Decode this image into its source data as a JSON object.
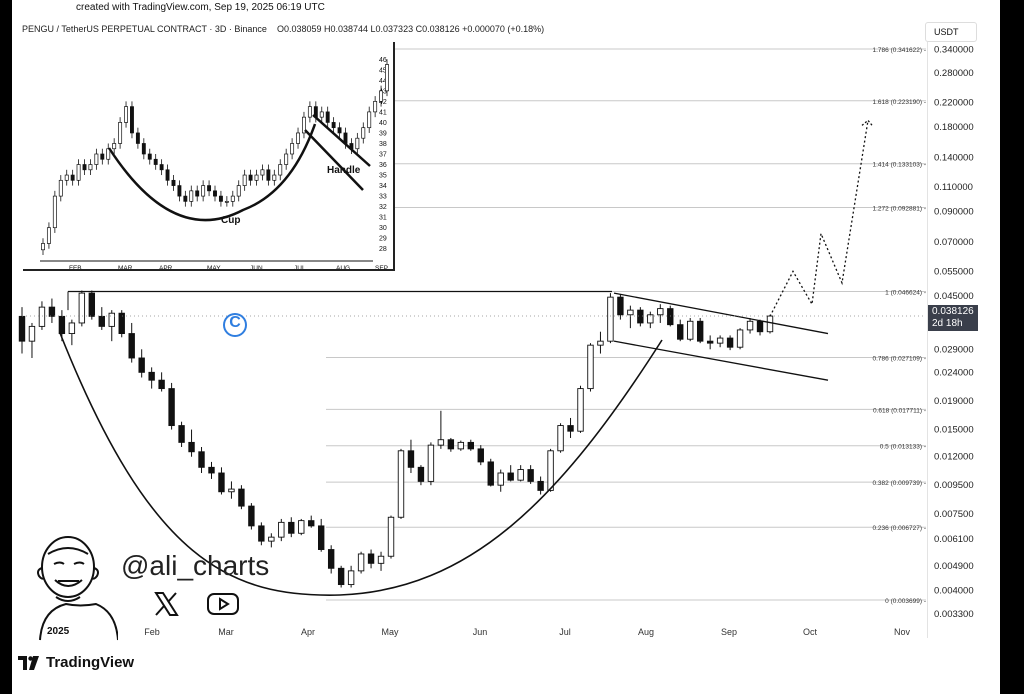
{
  "header": {
    "created": "created with TradingView.com, Sep 19, 2025 06:19 UTC",
    "symbol": "PENGU / TetherUS PERPETUAL CONTRACT · 3D · Binance",
    "ohlc": "O0.038059 H0.038744 L0.037323 C0.038126 +0.000070 (+0.18%)",
    "currency": "USDT"
  },
  "price_badge": {
    "price": "0.038126",
    "countdown": "2d 18h"
  },
  "branding": {
    "handle": "@ali_charts",
    "year": "2025",
    "logo": "TradingView",
    "icons": [
      "x-icon",
      "youtube-icon",
      "avatar-icon",
      "tradingview-logo-icon",
      "coin-logo-icon"
    ]
  },
  "colors": {
    "candle_up": "#ffffff",
    "candle_down": "#111111",
    "lines": "#111111",
    "fib": "#cccccc"
  },
  "chart_data": [
    {
      "type": "candlestick",
      "title": "",
      "x_ticks": [
        "Feb",
        "Mar",
        "Apr",
        "May",
        "Jun",
        "Jul",
        "Aug",
        "Sep",
        "Oct",
        "Nov"
      ],
      "y_scale": "log",
      "ylim": [
        0.003,
        0.37
      ],
      "y_ticks": [
        "0.340000",
        "0.280000",
        "0.220000",
        "0.180000",
        "0.140000",
        "0.110000",
        "0.090000",
        "0.070000",
        "0.055000",
        "0.045000",
        "0.029000",
        "0.024000",
        "0.019000",
        "0.015000",
        "0.012000",
        "0.009500",
        "0.007500",
        "0.006100",
        "0.004900",
        "0.004000",
        "0.003300"
      ],
      "fib_levels": [
        {
          "label": "1.786 (0.341622)",
          "value": 0.341622
        },
        {
          "label": "1.618 (0.223190)",
          "value": 0.22319
        },
        {
          "label": "1.414 (0.133103)",
          "value": 0.133103
        },
        {
          "label": "1.272 (0.092881)",
          "value": 0.092881
        },
        {
          "label": "1 (0.046624)",
          "value": 0.046624
        },
        {
          "label": "0.786 (0.027109)",
          "value": 0.027109
        },
        {
          "label": "0.618 (0.017711)",
          "value": 0.017711
        },
        {
          "label": "0.5 (0.013133)",
          "value": 0.013133
        },
        {
          "label": "0.382 (0.009739)",
          "value": 0.009739
        },
        {
          "label": "0.236 (0.006727)",
          "value": 0.006727
        },
        {
          "label": "0 (0.003699)",
          "value": 0.003699
        }
      ],
      "ohlc": [
        [
          0.038,
          0.041,
          0.028,
          0.031
        ],
        [
          0.031,
          0.036,
          0.027,
          0.035
        ],
        [
          0.035,
          0.043,
          0.034,
          0.041
        ],
        [
          0.041,
          0.044,
          0.036,
          0.038
        ],
        [
          0.038,
          0.04,
          0.031,
          0.033
        ],
        [
          0.033,
          0.037,
          0.03,
          0.036
        ],
        [
          0.036,
          0.047,
          0.035,
          0.046
        ],
        [
          0.046,
          0.047,
          0.037,
          0.038
        ],
        [
          0.038,
          0.041,
          0.034,
          0.035
        ],
        [
          0.035,
          0.04,
          0.031,
          0.039
        ],
        [
          0.039,
          0.04,
          0.032,
          0.033
        ],
        [
          0.033,
          0.036,
          0.026,
          0.027
        ],
        [
          0.027,
          0.029,
          0.023,
          0.024
        ],
        [
          0.024,
          0.025,
          0.021,
          0.0225
        ],
        [
          0.0225,
          0.024,
          0.0205,
          0.021
        ],
        [
          0.021,
          0.022,
          0.015,
          0.0155
        ],
        [
          0.0155,
          0.016,
          0.013,
          0.0135
        ],
        [
          0.0135,
          0.015,
          0.012,
          0.0125
        ],
        [
          0.0125,
          0.013,
          0.0105,
          0.011
        ],
        [
          0.011,
          0.0115,
          0.01,
          0.0105
        ],
        [
          0.0105,
          0.011,
          0.0088,
          0.009
        ],
        [
          0.009,
          0.0098,
          0.0085,
          0.0092
        ],
        [
          0.0092,
          0.0095,
          0.0078,
          0.008
        ],
        [
          0.008,
          0.0082,
          0.0066,
          0.0068
        ],
        [
          0.0068,
          0.007,
          0.0058,
          0.006
        ],
        [
          0.006,
          0.0064,
          0.0057,
          0.0062
        ],
        [
          0.0062,
          0.0072,
          0.006,
          0.007
        ],
        [
          0.007,
          0.0073,
          0.0062,
          0.0064
        ],
        [
          0.0064,
          0.0072,
          0.0063,
          0.0071
        ],
        [
          0.0071,
          0.0074,
          0.0067,
          0.0068
        ],
        [
          0.0068,
          0.0072,
          0.0055,
          0.0056
        ],
        [
          0.0056,
          0.0058,
          0.0046,
          0.0048
        ],
        [
          0.0048,
          0.0049,
          0.0041,
          0.0042
        ],
        [
          0.0042,
          0.0049,
          0.0041,
          0.0047
        ],
        [
          0.0047,
          0.0055,
          0.0046,
          0.0054
        ],
        [
          0.0054,
          0.0056,
          0.0048,
          0.005
        ],
        [
          0.005,
          0.0055,
          0.0047,
          0.0053
        ],
        [
          0.0053,
          0.0074,
          0.0052,
          0.0073
        ],
        [
          0.0073,
          0.0128,
          0.0072,
          0.0126
        ],
        [
          0.0126,
          0.0138,
          0.0105,
          0.011
        ],
        [
          0.011,
          0.0112,
          0.0095,
          0.0098
        ],
        [
          0.0098,
          0.0135,
          0.0095,
          0.0132
        ],
        [
          0.0132,
          0.0175,
          0.0128,
          0.0138
        ],
        [
          0.0138,
          0.014,
          0.0125,
          0.0128
        ],
        [
          0.0128,
          0.0137,
          0.0126,
          0.0135
        ],
        [
          0.0135,
          0.0138,
          0.0126,
          0.0128
        ],
        [
          0.0128,
          0.0132,
          0.0112,
          0.0115
        ],
        [
          0.0115,
          0.0118,
          0.0094,
          0.0095
        ],
        [
          0.0095,
          0.0108,
          0.009,
          0.0105
        ],
        [
          0.0105,
          0.0112,
          0.0098,
          0.0099
        ],
        [
          0.0099,
          0.0112,
          0.0098,
          0.0108
        ],
        [
          0.0108,
          0.0112,
          0.0096,
          0.0098
        ],
        [
          0.0098,
          0.0102,
          0.0088,
          0.0091
        ],
        [
          0.0091,
          0.0128,
          0.009,
          0.0126
        ],
        [
          0.0126,
          0.0158,
          0.0124,
          0.0155
        ],
        [
          0.0155,
          0.0165,
          0.014,
          0.0148
        ],
        [
          0.0148,
          0.0215,
          0.0146,
          0.021
        ],
        [
          0.021,
          0.0305,
          0.0205,
          0.03
        ],
        [
          0.03,
          0.0335,
          0.028,
          0.031
        ],
        [
          0.031,
          0.046,
          0.0305,
          0.0445
        ],
        [
          0.0445,
          0.0455,
          0.037,
          0.0385
        ],
        [
          0.0385,
          0.0415,
          0.0345,
          0.04
        ],
        [
          0.04,
          0.041,
          0.035,
          0.036
        ],
        [
          0.036,
          0.0395,
          0.0345,
          0.0385
        ],
        [
          0.0385,
          0.042,
          0.036,
          0.0405
        ],
        [
          0.0405,
          0.0415,
          0.035,
          0.0355
        ],
        [
          0.0355,
          0.037,
          0.031,
          0.0315
        ],
        [
          0.0315,
          0.0375,
          0.031,
          0.0365
        ],
        [
          0.0365,
          0.0375,
          0.0305,
          0.031
        ],
        [
          0.031,
          0.0325,
          0.029,
          0.0305
        ],
        [
          0.0305,
          0.0325,
          0.0295,
          0.0318
        ],
        [
          0.0318,
          0.0325,
          0.0288,
          0.0295
        ],
        [
          0.0295,
          0.0345,
          0.029,
          0.034
        ],
        [
          0.034,
          0.0375,
          0.033,
          0.0365
        ],
        [
          0.0365,
          0.037,
          0.0325,
          0.0335
        ],
        [
          0.0335,
          0.0385,
          0.033,
          0.0381
        ]
      ],
      "projection": [
        0.038,
        0.055,
        0.042,
        0.075,
        0.05,
        0.19
      ]
    },
    {
      "type": "candlestick",
      "title": "",
      "x_ticks": [
        "FEB",
        "MAR",
        "APR",
        "MAY",
        "JUN",
        "JUL",
        "AUG",
        "SEP"
      ],
      "y_ticks": [
        "46",
        "45",
        "44",
        "43",
        "42",
        "41",
        "40",
        "39",
        "38",
        "37",
        "36",
        "35",
        "34",
        "33",
        "32",
        "31",
        "30",
        "29",
        "28"
      ],
      "ylim": [
        27.5,
        46.5
      ],
      "annotations": {
        "cup": "Cup",
        "handle": "Handle"
      },
      "closes": [
        28.5,
        30,
        33,
        34.5,
        35,
        34.5,
        36,
        35.5,
        36,
        37,
        36.5,
        37.5,
        38,
        40,
        41.5,
        39,
        38,
        37,
        36.5,
        36,
        35.5,
        34.5,
        34,
        33,
        32.5,
        33.5,
        33,
        34,
        33.5,
        33,
        32.5,
        32.5,
        33,
        34,
        35,
        34.5,
        35,
        35.5,
        34.5,
        35,
        36,
        37,
        38,
        39,
        40.5,
        41.5,
        40.5,
        41,
        40,
        39.5,
        39,
        38,
        37.5,
        38.5,
        39.5,
        41,
        42,
        43,
        45.5
      ]
    }
  ]
}
